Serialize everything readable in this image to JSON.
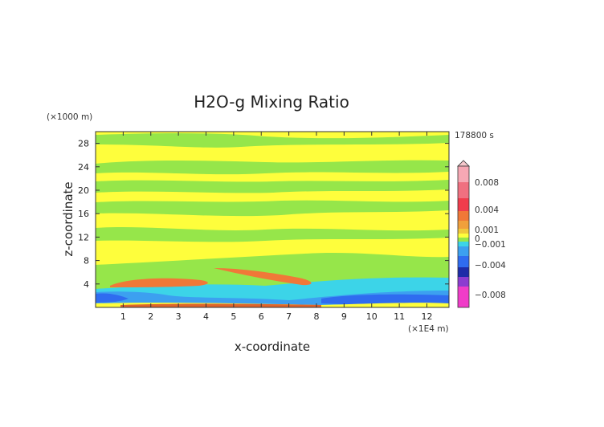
{
  "chart_data": {
    "type": "heatmap",
    "title": "H2O-g Mixing Ratio",
    "xlabel": "x-coordinate",
    "ylabel": "z-coordinate",
    "x_unit": "(×1E4 m)",
    "y_unit": "(×1000 m)",
    "time_label": "178800 s",
    "xlim": [
      0,
      12.8
    ],
    "ylim": [
      0,
      30
    ],
    "x_ticks": [
      1,
      2,
      3,
      4,
      5,
      6,
      7,
      8,
      9,
      10,
      11,
      12
    ],
    "x_tick_labels": [
      "1",
      "2",
      "3",
      "4",
      "5",
      "6",
      "7",
      "8",
      "9",
      "10",
      "11",
      "12"
    ],
    "y_ticks": [
      4,
      8,
      12,
      16,
      20,
      24,
      28
    ],
    "y_tick_labels": [
      "4",
      "8",
      "12",
      "16",
      "20",
      "24",
      "28"
    ],
    "colorbar": {
      "levels": [
        {
          "value": 0.008,
          "label": "0.008"
        },
        {
          "value": 0.004,
          "label": "0.004"
        },
        {
          "value": 0.001,
          "label": "0.001"
        },
        {
          "value": 0,
          "label": "0"
        },
        {
          "value": -0.001,
          "label": "−0.001"
        },
        {
          "value": -0.004,
          "label": "−0.004"
        },
        {
          "value": -0.008,
          "label": "−0.008"
        }
      ]
    },
    "field_bands": [
      {
        "level": "green",
        "z_from": 26.0,
        "z_to": 28.0
      },
      {
        "level": "green",
        "z_from": 22.0,
        "z_to": 24.0
      },
      {
        "level": "green",
        "z_from": 19.0,
        "z_to": 21.0
      },
      {
        "level": "green",
        "z_from": 15.5,
        "z_to": 17.5
      },
      {
        "level": "green",
        "z_from": 11.0,
        "z_to": 12.5
      },
      {
        "level": "orange",
        "z_from": 3.5,
        "z_to": 4.8,
        "x_from": 0.5,
        "x_to": 3.9
      },
      {
        "level": "orange",
        "z_from": 4.2,
        "z_to": 7.0,
        "x_from": 4.4,
        "x_to": 7.8
      },
      {
        "level": "cyan",
        "z_from": 1.0,
        "z_to": 4.5,
        "x_from": 0,
        "x_to": 12.8
      },
      {
        "level": "blue",
        "z_from": 0.8,
        "z_to": 2.5,
        "x_from": 0,
        "x_to": 1.5
      },
      {
        "level": "blue",
        "z_from": 0.5,
        "z_to": 1.5,
        "x_from": 8.0,
        "x_to": 12.8
      }
    ],
    "colors": {
      "pink_top": "#f6a8b4",
      "red": "#f03c4c",
      "orange": "#f07838",
      "dark_orange": "#e0642c",
      "yellow": "#fefe3c",
      "yellow_green": "#c8f040",
      "green": "#96e64a",
      "cyan": "#3cd4e8",
      "light_blue": "#3ca0f0",
      "blue": "#2f6cf0",
      "dark_blue": "#1e2ca8",
      "purple": "#8c3cd0",
      "magenta": "#f03cc8"
    }
  }
}
